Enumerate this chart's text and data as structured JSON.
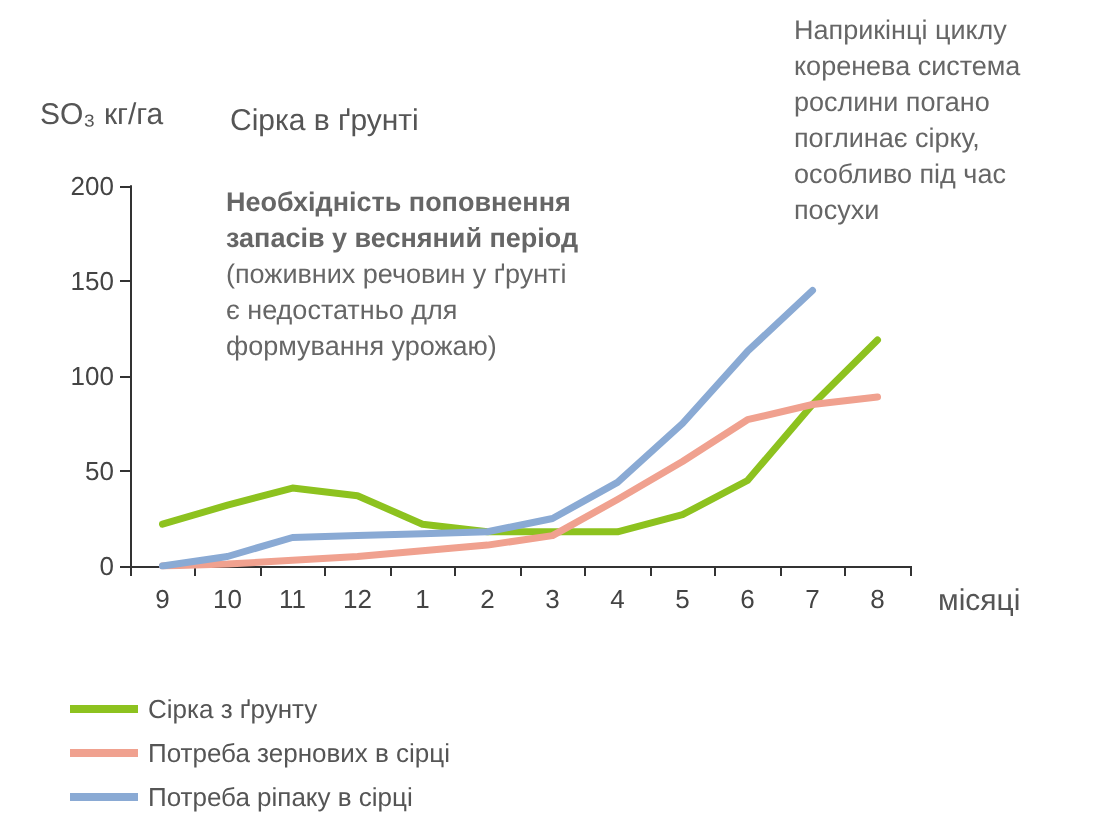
{
  "chart_data": {
    "type": "line",
    "title": "Сірка в ґрунті",
    "ylabel": "SO₃ кг/га",
    "xlabel": "місяці",
    "categories": [
      "9",
      "10",
      "11",
      "12",
      "1",
      "2",
      "3",
      "4",
      "5",
      "6",
      "7",
      "8"
    ],
    "series": [
      {
        "name": "Сірка з ґрунту",
        "color": "#8dc21f",
        "values": [
          22,
          32,
          41,
          37,
          22,
          18,
          18,
          18,
          27,
          45,
          85,
          119
        ]
      },
      {
        "name": "Потреба зернових в сірці",
        "color": "#f0a18f",
        "values": [
          0,
          1,
          3,
          5,
          8,
          11,
          16,
          35,
          55,
          77,
          85,
          89
        ]
      },
      {
        "name": "Потреба ріпаку в сірці",
        "color": "#8aaad4",
        "values": [
          0,
          5,
          15,
          16,
          17,
          18,
          25,
          44,
          75,
          113,
          145,
          null
        ]
      }
    ],
    "ylim": [
      0,
      200
    ],
    "yticks": [
      0,
      50,
      100,
      150,
      200
    ],
    "grid": false,
    "legend": "bottom left",
    "marker": "none",
    "line_style": "solid",
    "annotations": [
      "Необхідність поповнення\nзапасів у весняний період",
      "(поживних речовин у ґрунті\nє недостатньо для\nформування урожаю)",
      "Наприкінці циклу\nкоренева система\nрослини погано\nпоглинає сірку,\nособливо під час\nпосухи"
    ]
  }
}
